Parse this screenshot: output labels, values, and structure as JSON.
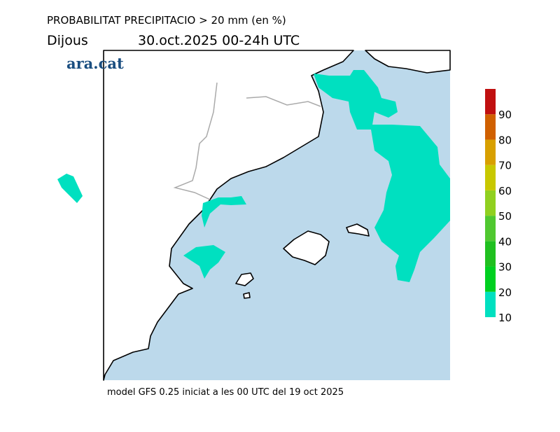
{
  "header": {
    "title": "PROBABILITAT PRECIPITACIO > 20 mm (en %)",
    "day": "Dijous",
    "date": "30.oct.2025 00-24h UTC",
    "brand": "ara.cat"
  },
  "colorbar": {
    "ticks": [
      10,
      20,
      30,
      40,
      50,
      60,
      70,
      80,
      90
    ],
    "colors": [
      "#00e0c0",
      "#00d020",
      "#20c020",
      "#50c830",
      "#90d020",
      "#c8c800",
      "#d8a000",
      "#d06000",
      "#c01010"
    ]
  },
  "footer": "model GFS 0.25 iniciat a les 00 UTC del 19 oct 2025"
}
